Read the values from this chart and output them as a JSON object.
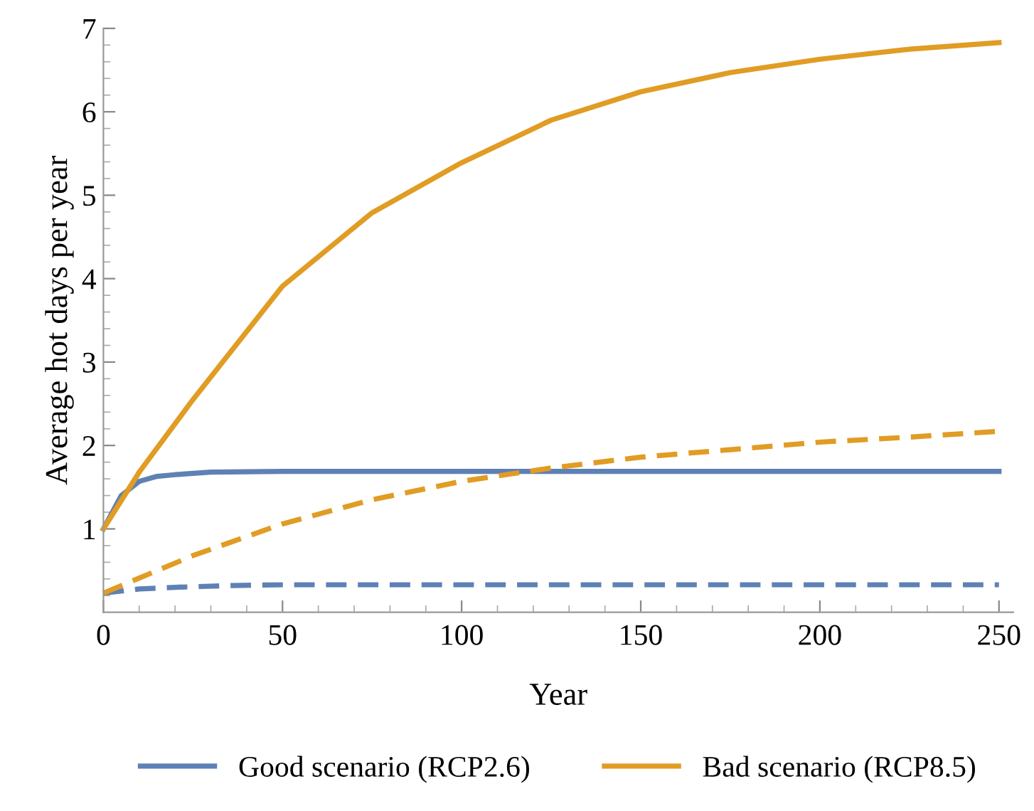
{
  "chart_data": {
    "type": "line",
    "xlabel": "Year",
    "ylabel": "Average hot days per year",
    "xlim": [
      0,
      254
    ],
    "ylim": [
      0,
      7
    ],
    "xticks": [
      0,
      {
        "value": 10,
        "label": null
      },
      {
        "value": 20,
        "label": null
      },
      {
        "value": 30,
        "label": null
      },
      {
        "value": 40,
        "label": null
      },
      50,
      {
        "value": 60,
        "label": null
      },
      {
        "value": 70,
        "label": null
      },
      {
        "value": 80,
        "label": null
      },
      {
        "value": 90,
        "label": null
      },
      100,
      {
        "value": 110,
        "label": null
      },
      {
        "value": 120,
        "label": null
      },
      {
        "value": 130,
        "label": null
      },
      {
        "value": 140,
        "label": null
      },
      150,
      {
        "value": 160,
        "label": null
      },
      {
        "value": 170,
        "label": null
      },
      {
        "value": 180,
        "label": null
      },
      {
        "value": 190,
        "label": null
      },
      200,
      {
        "value": 210,
        "label": null
      },
      {
        "value": 220,
        "label": null
      },
      {
        "value": 230,
        "label": null
      },
      {
        "value": 240,
        "label": null
      },
      250
    ],
    "yticks": [
      {
        "value": 0.2,
        "label": null
      },
      {
        "value": 0.4,
        "label": null
      },
      {
        "value": 0.6,
        "label": null
      },
      {
        "value": 0.8,
        "label": null
      },
      1,
      {
        "value": 1.2,
        "label": null
      },
      {
        "value": 1.4,
        "label": null
      },
      {
        "value": 1.6,
        "label": null
      },
      {
        "value": 1.8,
        "label": null
      },
      2,
      {
        "value": 2.2,
        "label": null
      },
      {
        "value": 2.4,
        "label": null
      },
      {
        "value": 2.6,
        "label": null
      },
      {
        "value": 2.8,
        "label": null
      },
      3,
      {
        "value": 3.2,
        "label": null
      },
      {
        "value": 3.4,
        "label": null
      },
      {
        "value": 3.6,
        "label": null
      },
      {
        "value": 3.8,
        "label": null
      },
      4,
      {
        "value": 4.2,
        "label": null
      },
      {
        "value": 4.4,
        "label": null
      },
      {
        "value": 4.6,
        "label": null
      },
      {
        "value": 4.8,
        "label": null
      },
      5,
      {
        "value": 5.2,
        "label": null
      },
      {
        "value": 5.4,
        "label": null
      },
      {
        "value": 5.6,
        "label": null
      },
      {
        "value": 5.8,
        "label": null
      },
      6,
      {
        "value": 6.2,
        "label": null
      },
      {
        "value": 6.4,
        "label": null
      },
      {
        "value": 6.6,
        "label": null
      },
      {
        "value": 6.8,
        "label": null
      },
      7
    ],
    "grid": false,
    "legend": "bottom",
    "marker": "none",
    "series": [
      {
        "name": "Good scenario (RCP2.6)",
        "color": "#5e81b5",
        "line_style": "solid",
        "x": [
          0,
          5,
          10,
          15,
          20,
          30,
          50,
          100,
          150,
          200,
          250
        ],
        "values": [
          1,
          1.4,
          1.57,
          1.63,
          1.65,
          1.68,
          1.69,
          1.69,
          1.69,
          1.69,
          1.69
        ]
      },
      {
        "name": "Bad scenario (RCP8.5)",
        "color": "#e19c24",
        "line_style": "solid",
        "x": [
          0,
          10,
          25,
          50,
          75,
          100,
          125,
          150,
          175,
          200,
          225,
          250
        ],
        "values": [
          1,
          1.68,
          2.55,
          3.91,
          4.79,
          5.39,
          5.9,
          6.24,
          6.47,
          6.63,
          6.75,
          6.83
        ]
      },
      {
        "color": "#5e81b5",
        "line_style": "dashed",
        "x": [
          0,
          10,
          20,
          35,
          50,
          100,
          150,
          200,
          250
        ],
        "values": [
          0.23,
          0.28,
          0.3,
          0.32,
          0.33,
          0.33,
          0.33,
          0.33,
          0.33
        ]
      },
      {
        "color": "#e19c24",
        "line_style": "dashed",
        "x": [
          0,
          25,
          50,
          75,
          100,
          125,
          150,
          175,
          200,
          225,
          250
        ],
        "values": [
          0.23,
          0.68,
          1.06,
          1.35,
          1.57,
          1.73,
          1.86,
          1.95,
          2.04,
          2.1,
          2.17
        ]
      }
    ]
  }
}
